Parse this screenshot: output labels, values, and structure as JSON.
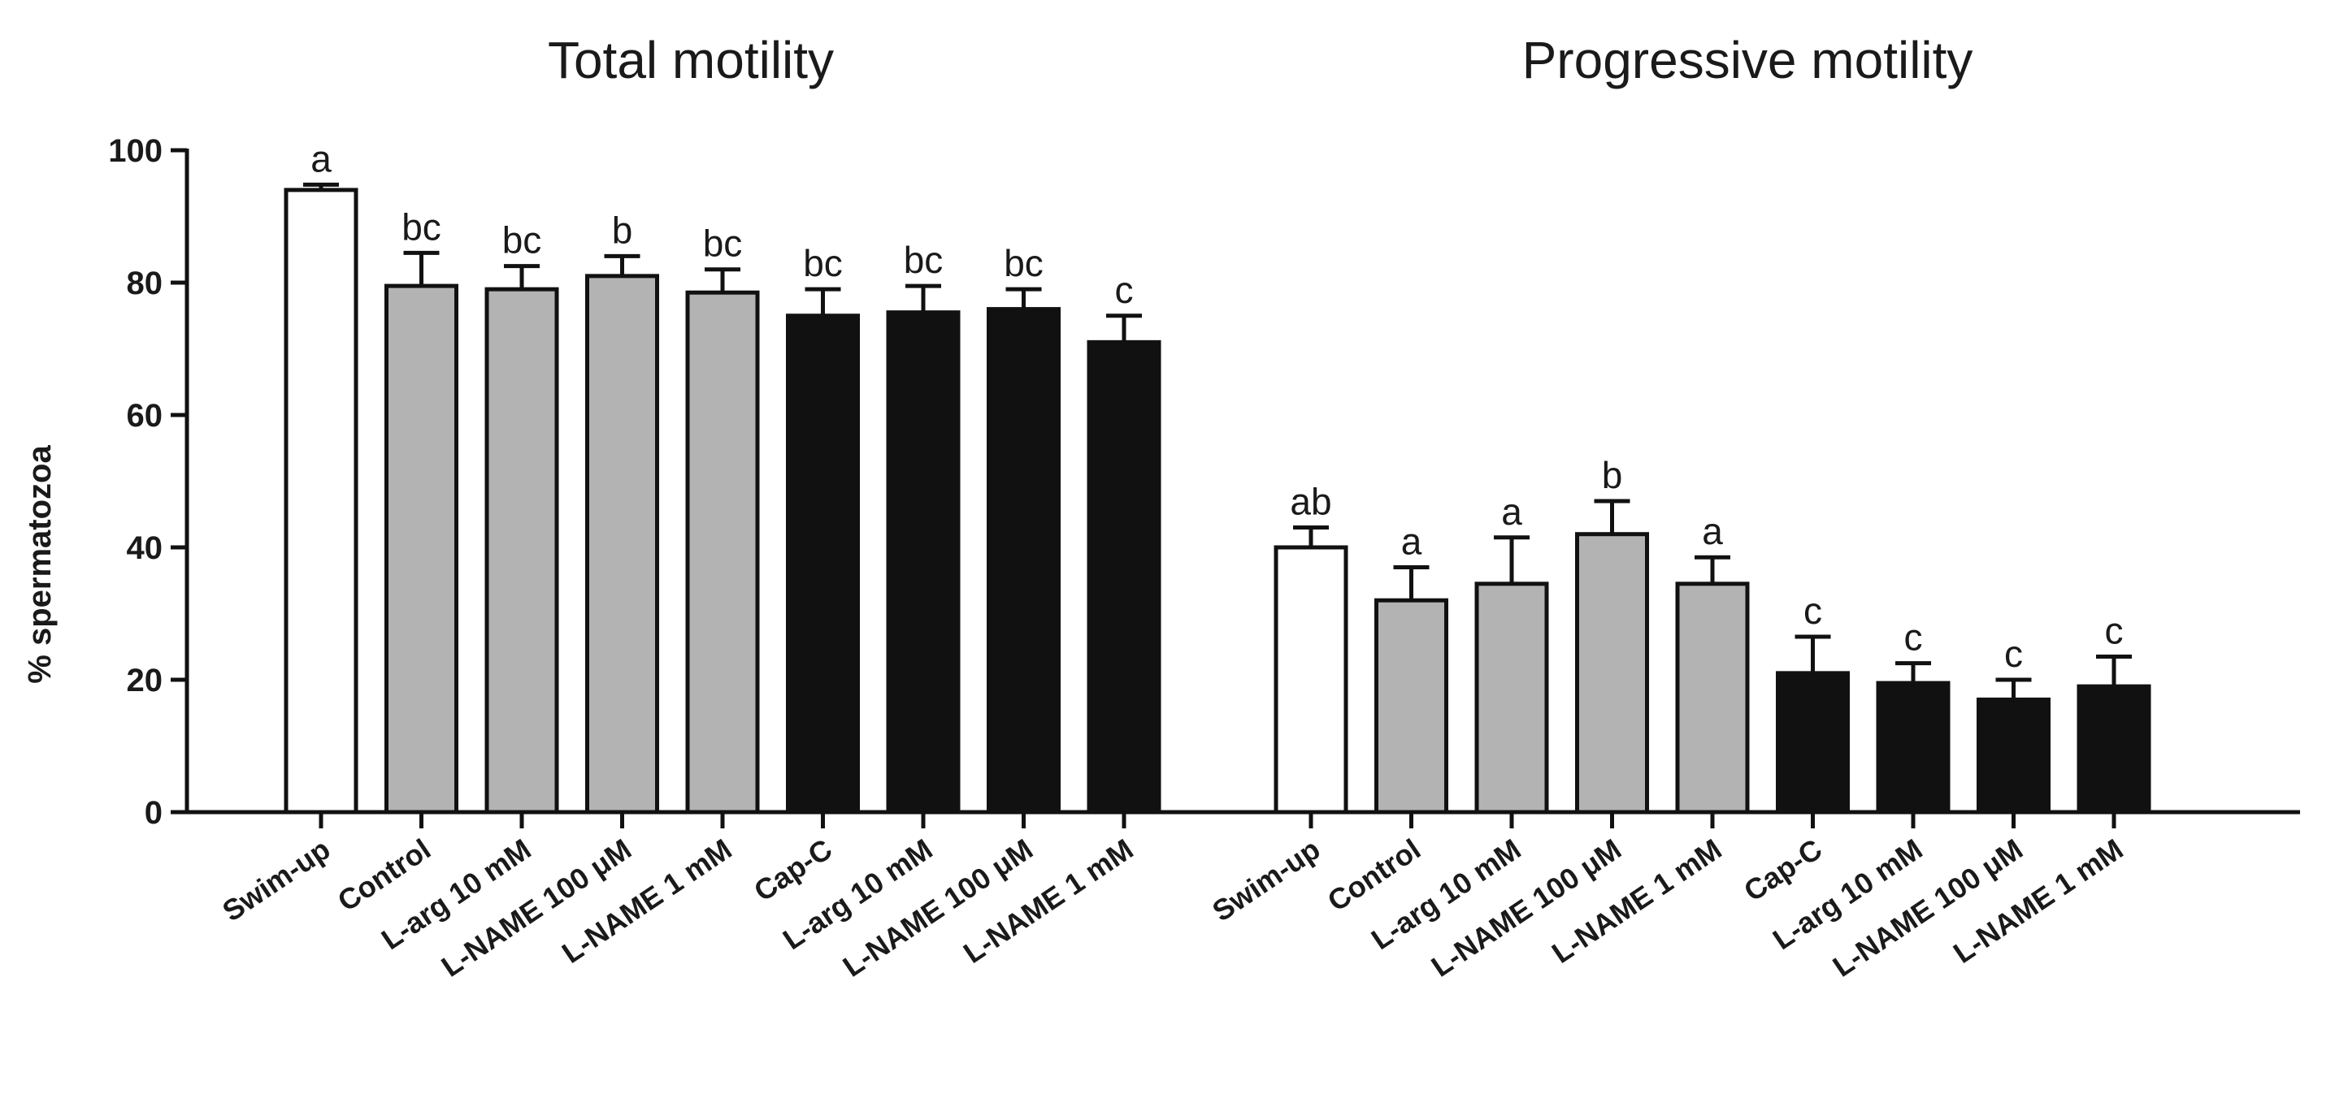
{
  "chart_data": {
    "type": "bar",
    "ylabel": "% spermatozoa",
    "ylim": [
      0,
      100
    ],
    "yticks": [
      "0",
      "20",
      "40",
      "60",
      "80",
      "100"
    ],
    "colors": {
      "white": "#ffffff",
      "gray": "#b3b3b3",
      "black": "#111111",
      "stroke": "#111111"
    },
    "categories": [
      "Swim-up",
      "Control",
      "L-arg 10 mM",
      "L-NAME 100 μM",
      "L-NAME 1 mM",
      "Cap-C",
      "L-arg 10 mM",
      "L-NAME 100 μM",
      "L-NAME 1 mM"
    ],
    "category_colors": [
      "white",
      "gray",
      "gray",
      "gray",
      "gray",
      "black",
      "black",
      "black",
      "black"
    ],
    "panels": [
      {
        "title": "Total motility",
        "values": [
          94,
          79.5,
          79,
          81,
          78.5,
          75,
          75.5,
          76,
          71
        ],
        "errors": [
          0.8,
          5,
          3.5,
          3,
          3.5,
          4,
          4,
          3,
          4
        ],
        "labels": [
          "a",
          "bc",
          "bc",
          "b",
          "bc",
          "bc",
          "bc",
          "bc",
          "c"
        ]
      },
      {
        "title": "Progressive motility",
        "values": [
          40,
          32,
          34.5,
          42,
          34.5,
          21,
          19.5,
          17,
          19
        ],
        "errors": [
          3,
          5,
          7,
          5,
          4,
          5.5,
          3,
          3,
          4.5
        ],
        "labels": [
          "ab",
          "a",
          "a",
          "b",
          "a",
          "c",
          "c",
          "c",
          "c"
        ]
      }
    ]
  }
}
